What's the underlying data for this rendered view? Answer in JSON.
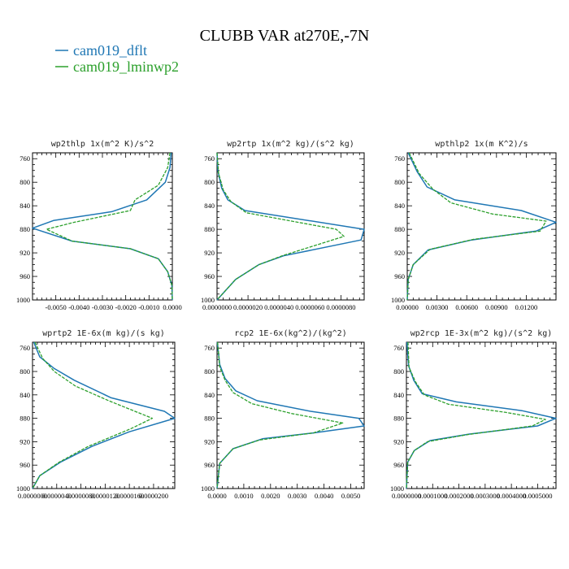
{
  "figure": {
    "title": "CLUBB VAR at270E,-7N",
    "legend": [
      {
        "label": "cam019_dflt",
        "color": "#1f77b4",
        "dash": "solid"
      },
      {
        "label": "cam019_lminwp2",
        "color": "#2ca02c",
        "dash": "dashed"
      }
    ]
  },
  "chart_data": [
    {
      "type": "line",
      "title": "wp2thlp  1x(m^2 K)/s^2",
      "xlim": [
        -0.006,
        0.0
      ],
      "xticks": [
        -0.005,
        -0.004,
        -0.003,
        -0.002,
        -0.001,
        0.0
      ],
      "xtick_labels": [
        "-0.0050",
        "-0.0040",
        "-0.0030",
        "-0.0020",
        "-0.0010",
        "0.0000"
      ],
      "ylim": [
        1000,
        750
      ],
      "yticks": [
        760,
        800,
        840,
        880,
        920,
        960,
        1000
      ],
      "series": [
        {
          "name": "cam019_dflt",
          "points": [
            [
              -5e-05,
              750
            ],
            [
              -0.0001,
              775
            ],
            [
              -0.0003,
              800
            ],
            [
              -0.0011,
              830
            ],
            [
              -0.0026,
              850
            ],
            [
              -0.0051,
              865
            ],
            [
              -0.006,
              878
            ],
            [
              -0.0043,
              900
            ],
            [
              -0.0018,
              913
            ],
            [
              -0.0006,
              930
            ],
            [
              -0.0002,
              952
            ],
            [
              -2e-05,
              975
            ],
            [
              0.0,
              1000
            ]
          ]
        },
        {
          "name": "cam019_lminwp2",
          "points": [
            [
              -0.0001,
              750
            ],
            [
              -0.0002,
              775
            ],
            [
              -0.0006,
              805
            ],
            [
              -0.0016,
              830
            ],
            [
              -0.0018,
              848
            ],
            [
              -0.0042,
              868
            ],
            [
              -0.0054,
              880
            ],
            [
              -0.0043,
              900
            ],
            [
              -0.0018,
              913
            ],
            [
              -0.0006,
              930
            ],
            [
              -0.0002,
              952
            ],
            [
              -2e-05,
              975
            ],
            [
              0.0,
              1000
            ]
          ]
        }
      ]
    },
    {
      "type": "line",
      "title": "wp2rtp  1x(m^2 kg)/(s^2 kg)",
      "xlim": [
        0.0,
        9.5e-06
      ],
      "xticks": [
        0.0,
        2e-06,
        4e-06,
        6e-06,
        8e-06
      ],
      "xtick_labels": [
        "0.0000000",
        "0.0000020",
        "0.0000040",
        "0.0000060",
        "0.0000080"
      ],
      "ylim": [
        1000,
        750
      ],
      "yticks": [
        760,
        800,
        840,
        880,
        920,
        960,
        1000
      ],
      "series": [
        {
          "name": "cam019_dflt",
          "points": [
            [
              0.0,
              750
            ],
            [
              5e-08,
              780
            ],
            [
              3e-07,
              810
            ],
            [
              7e-07,
              830
            ],
            [
              1.8e-06,
              848
            ],
            [
              9.5e-06,
              880
            ],
            [
              9.3e-06,
              898
            ],
            [
              4.3e-06,
              925
            ],
            [
              2.7e-06,
              940
            ],
            [
              1.2e-06,
              965
            ],
            [
              0.0,
              1000
            ]
          ]
        },
        {
          "name": "cam019_lminwp2",
          "points": [
            [
              0.0,
              750
            ],
            [
              1e-07,
              785
            ],
            [
              4e-07,
              813
            ],
            [
              9e-07,
              833
            ],
            [
              1.9e-06,
              852
            ],
            [
              7.7e-06,
              880
            ],
            [
              8.2e-06,
              892
            ],
            [
              4.2e-06,
              925
            ],
            [
              2.7e-06,
              940
            ],
            [
              1.2e-06,
              965
            ],
            [
              0.0,
              1000
            ]
          ]
        }
      ]
    },
    {
      "type": "line",
      "title": "wpthlp2  1x(m K^2)/s",
      "xlim": [
        0.0,
        0.015
      ],
      "xticks": [
        0.0,
        0.003,
        0.006,
        0.009,
        0.012
      ],
      "xtick_labels": [
        "0.00000",
        "0.00300",
        "0.00600",
        "0.00900",
        "0.01200"
      ],
      "ylim": [
        1000,
        750
      ],
      "yticks": [
        760,
        800,
        840,
        880,
        920,
        960,
        1000
      ],
      "series": [
        {
          "name": "cam019_dflt",
          "points": [
            [
              0.0001,
              750
            ],
            [
              0.001,
              782
            ],
            [
              0.002,
              808
            ],
            [
              0.0048,
              830
            ],
            [
              0.0115,
              848
            ],
            [
              0.015,
              868
            ],
            [
              0.013,
              883
            ],
            [
              0.0065,
              898
            ],
            [
              0.0021,
              915
            ],
            [
              0.0006,
              940
            ],
            [
              0.0001,
              965
            ],
            [
              0.0,
              1000
            ]
          ]
        },
        {
          "name": "cam019_lminwp2",
          "points": [
            [
              0.0002,
              750
            ],
            [
              0.0012,
              785
            ],
            [
              0.0026,
              812
            ],
            [
              0.0044,
              835
            ],
            [
              0.0086,
              854
            ],
            [
              0.014,
              866
            ],
            [
              0.0134,
              883
            ],
            [
              0.0067,
              897
            ],
            [
              0.0023,
              914
            ],
            [
              0.0006,
              940
            ],
            [
              0.0001,
              965
            ],
            [
              0.0,
              1000
            ]
          ]
        }
      ]
    },
    {
      "type": "line",
      "title": "wprtp2  1E-6x(m kg)/(s kg)",
      "xlim": [
        0.0,
        2.35e-05
      ],
      "xticks": [
        0.0,
        4e-06,
        8e-06,
        1.2e-05,
        1.6e-05,
        2e-05
      ],
      "xtick_labels": [
        "0.0000000",
        "0.0000040",
        "0.0000080",
        "0.0000120",
        "0.0000160",
        "0.0000200"
      ],
      "ylim": [
        1000,
        750
      ],
      "yticks": [
        760,
        800,
        840,
        880,
        920,
        960,
        1000
      ],
      "series": [
        {
          "name": "cam019_dflt",
          "points": [
            [
              2e-07,
              750
            ],
            [
              1.2e-06,
              775
            ],
            [
              3.6e-06,
              795
            ],
            [
              6.9e-06,
              815
            ],
            [
              1.3e-05,
              845
            ],
            [
              2.18e-05,
              868
            ],
            [
              2.35e-05,
              880
            ],
            [
              1.6e-05,
              903
            ],
            [
              9.8e-06,
              928
            ],
            [
              4.6e-06,
              955
            ],
            [
              1.2e-06,
              978
            ],
            [
              0.0,
              1000
            ]
          ]
        },
        {
          "name": "cam019_lminwp2",
          "points": [
            [
              4e-07,
              750
            ],
            [
              1.7e-06,
              778
            ],
            [
              3.6e-06,
              800
            ],
            [
              7.1e-06,
              825
            ],
            [
              1.26e-05,
              850
            ],
            [
              1.98e-05,
              880
            ],
            [
              1.62e-05,
              898
            ],
            [
              9.2e-06,
              928
            ],
            [
              4.4e-06,
              955
            ],
            [
              1.2e-06,
              978
            ],
            [
              0.0,
              1000
            ]
          ]
        }
      ]
    },
    {
      "type": "line",
      "title": "rcp2  1E-6x(kg^2)/(kg^2)",
      "xlim": [
        0.0,
        0.0055
      ],
      "xticks": [
        0.0,
        0.001,
        0.002,
        0.003,
        0.004,
        0.005
      ],
      "xtick_labels": [
        "0.0000",
        "0.0010",
        "0.0020",
        "0.0030",
        "0.0040",
        "0.0050"
      ],
      "ylim": [
        1000,
        750
      ],
      "yticks": [
        760,
        800,
        840,
        880,
        920,
        960,
        1000
      ],
      "series": [
        {
          "name": "cam019_dflt",
          "points": [
            [
              1e-05,
              750
            ],
            [
              0.0001,
              788
            ],
            [
              0.0003,
              812
            ],
            [
              0.0007,
              833
            ],
            [
              0.0015,
              850
            ],
            [
              0.0035,
              868
            ],
            [
              0.0053,
              880
            ],
            [
              0.0055,
              893
            ],
            [
              0.0036,
              905
            ],
            [
              0.0017,
              915
            ],
            [
              0.0006,
              932
            ],
            [
              0.0001,
              957
            ],
            [
              0.0,
              1000
            ]
          ]
        },
        {
          "name": "cam019_lminwp2",
          "points": [
            [
              2e-05,
              750
            ],
            [
              0.0001,
              792
            ],
            [
              0.0003,
              815
            ],
            [
              0.0006,
              836
            ],
            [
              0.0013,
              855
            ],
            [
              0.0028,
              872
            ],
            [
              0.0047,
              888
            ],
            [
              0.0036,
              905
            ],
            [
              0.0016,
              917
            ],
            [
              0.0006,
              932
            ],
            [
              0.0001,
              957
            ],
            [
              0.0,
              1000
            ]
          ]
        }
      ]
    },
    {
      "type": "line",
      "title": "wp2rcp  1E-3x(m^2 kg)/(s^2 kg)",
      "xlim": [
        0.0,
        0.00057
      ],
      "xticks": [
        0.0,
        0.0001,
        0.0002,
        0.0003,
        0.0004,
        0.0005
      ],
      "xtick_labels": [
        "0.0000000",
        "0.0001000",
        "0.0002000",
        "0.0003000",
        "0.0004000",
        "0.0005000"
      ],
      "ylim": [
        1000,
        750
      ],
      "yticks": [
        760,
        800,
        840,
        880,
        920,
        960,
        1000
      ],
      "series": [
        {
          "name": "cam019_dflt",
          "points": [
            [
              2e-06,
              750
            ],
            [
              8e-06,
              790
            ],
            [
              2.8e-05,
              815
            ],
            [
              6e-05,
              838
            ],
            [
              0.00019,
              852
            ],
            [
              0.00044,
              867
            ],
            [
              0.00057,
              880
            ],
            [
              0.0005,
              893
            ],
            [
              0.00024,
              907
            ],
            [
              9e-05,
              918
            ],
            [
              3e-05,
              935
            ],
            [
              5e-06,
              955
            ],
            [
              0.0,
              1000
            ]
          ]
        },
        {
          "name": "cam019_lminwp2",
          "points": [
            [
              6e-06,
              750
            ],
            [
              1e-05,
              793
            ],
            [
              3.5e-05,
              818
            ],
            [
              6.8e-05,
              840
            ],
            [
              0.00016,
              856
            ],
            [
              0.00038,
              870
            ],
            [
              0.00053,
              882
            ],
            [
              0.00048,
              893
            ],
            [
              0.00023,
              908
            ],
            [
              8e-05,
              920
            ],
            [
              3e-05,
              935
            ],
            [
              5e-06,
              955
            ],
            [
              0.0,
              1000
            ]
          ]
        }
      ]
    }
  ]
}
